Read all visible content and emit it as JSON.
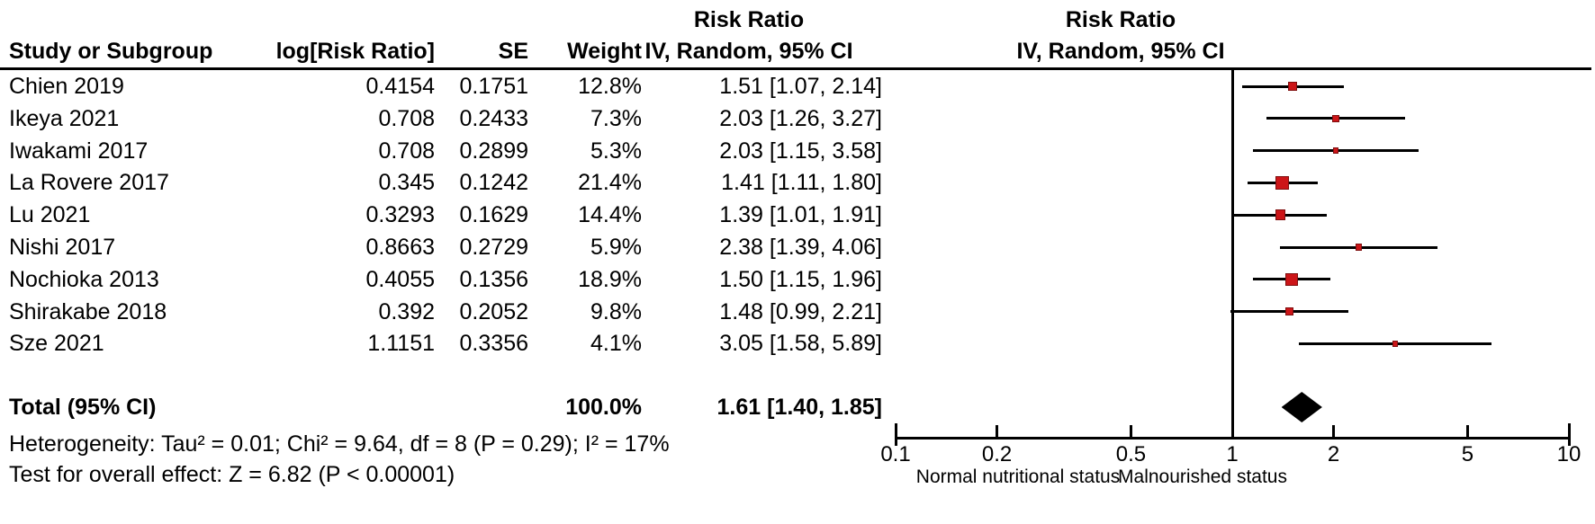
{
  "headers": {
    "study": "Study or Subgroup",
    "log_rr": "log[Risk Ratio]",
    "se": "SE",
    "weight": "Weight",
    "table_effect_line1": "Risk Ratio",
    "table_effect_line2": "IV, Random, 95% CI",
    "plot_effect_line1": "Risk Ratio",
    "plot_effect_line2": "IV, Random, 95% CI"
  },
  "chart_data": {
    "type": "scatter",
    "subtype": "forest-plot",
    "effect_measure": "Risk Ratio",
    "method": "IV, Random, 95% CI",
    "x_scale": "log",
    "x_range": [
      0.1,
      10
    ],
    "x_ticks": [
      0.1,
      0.2,
      0.5,
      1,
      2,
      5,
      10
    ],
    "studies": [
      {
        "name": "Chien 2019",
        "log_rr_text": "0.4154",
        "se_text": "0.1751",
        "weight_text": "12.8%",
        "ci_text": "1.51 [1.07, 2.14]",
        "rr": 1.51,
        "lo": 1.07,
        "hi": 2.14,
        "weight_pct": 12.8
      },
      {
        "name": "Ikeya 2021",
        "log_rr_text": "0.708",
        "se_text": "0.2433",
        "weight_text": "7.3%",
        "ci_text": "2.03 [1.26, 3.27]",
        "rr": 2.03,
        "lo": 1.26,
        "hi": 3.27,
        "weight_pct": 7.3
      },
      {
        "name": "Iwakami 2017",
        "log_rr_text": "0.708",
        "se_text": "0.2899",
        "weight_text": "5.3%",
        "ci_text": "2.03 [1.15, 3.58]",
        "rr": 2.03,
        "lo": 1.15,
        "hi": 3.58,
        "weight_pct": 5.3
      },
      {
        "name": "La Rovere 2017",
        "log_rr_text": "0.345",
        "se_text": "0.1242",
        "weight_text": "21.4%",
        "ci_text": "1.41 [1.11, 1.80]",
        "rr": 1.41,
        "lo": 1.11,
        "hi": 1.8,
        "weight_pct": 21.4
      },
      {
        "name": "Lu 2021",
        "log_rr_text": "0.3293",
        "se_text": "0.1629",
        "weight_text": "14.4%",
        "ci_text": "1.39 [1.01, 1.91]",
        "rr": 1.39,
        "lo": 1.01,
        "hi": 1.91,
        "weight_pct": 14.4
      },
      {
        "name": "Nishi 2017",
        "log_rr_text": "0.8663",
        "se_text": "0.2729",
        "weight_text": "5.9%",
        "ci_text": "2.38 [1.39, 4.06]",
        "rr": 2.38,
        "lo": 1.39,
        "hi": 4.06,
        "weight_pct": 5.9
      },
      {
        "name": "Nochioka 2013",
        "log_rr_text": "0.4055",
        "se_text": "0.1356",
        "weight_text": "18.9%",
        "ci_text": "1.50 [1.15, 1.96]",
        "rr": 1.5,
        "lo": 1.15,
        "hi": 1.96,
        "weight_pct": 18.9
      },
      {
        "name": "Shirakabe 2018",
        "log_rr_text": "0.392",
        "se_text": "0.2052",
        "weight_text": "9.8%",
        "ci_text": "1.48 [0.99, 2.21]",
        "rr": 1.48,
        "lo": 0.99,
        "hi": 2.21,
        "weight_pct": 9.8
      },
      {
        "name": "Sze 2021",
        "log_rr_text": "1.1151",
        "se_text": "0.3356",
        "weight_text": "4.1%",
        "ci_text": "3.05 [1.58, 5.89]",
        "rr": 3.05,
        "lo": 1.58,
        "hi": 5.89,
        "weight_pct": 4.1
      }
    ],
    "total": {
      "label": "Total (95% CI)",
      "weight_text": "100.0%",
      "ci_text": "1.61 [1.40, 1.85]",
      "rr": 1.61,
      "lo": 1.4,
      "hi": 1.85
    },
    "heterogeneity": {
      "tau2": 0.01,
      "chi2": 9.64,
      "df": 8,
      "p": 0.29,
      "i2": "17%"
    },
    "overall_effect": {
      "z": 6.82,
      "p": "< 0.00001"
    },
    "axis_direction_labels": {
      "left": "Normal nutritional status",
      "right": "Malnourished status"
    },
    "legend_position": "none",
    "grid": false
  },
  "footer": {
    "heterogeneity": "Heterogeneity: Tau² = 0.01; Chi² = 9.64, df = 8 (P = 0.29); I² = 17%",
    "overall_effect": "Test for overall effect: Z = 6.82 (P < 0.00001)"
  },
  "axis": {
    "ticks": [
      {
        "value": 0.1,
        "label": "0.1"
      },
      {
        "value": 0.2,
        "label": "0.2"
      },
      {
        "value": 0.5,
        "label": "0.5"
      },
      {
        "value": 1,
        "label": "1"
      },
      {
        "value": 2,
        "label": "2"
      },
      {
        "value": 5,
        "label": "5"
      },
      {
        "value": 10,
        "label": "10"
      }
    ],
    "left_label": "Normal nutritional status",
    "right_label": "Malnourished status"
  },
  "colors": {
    "marker": "#cc1518",
    "marker_border": "#7f0e0e",
    "diamond": "#000000",
    "line": "#000000",
    "text": "#000000"
  }
}
